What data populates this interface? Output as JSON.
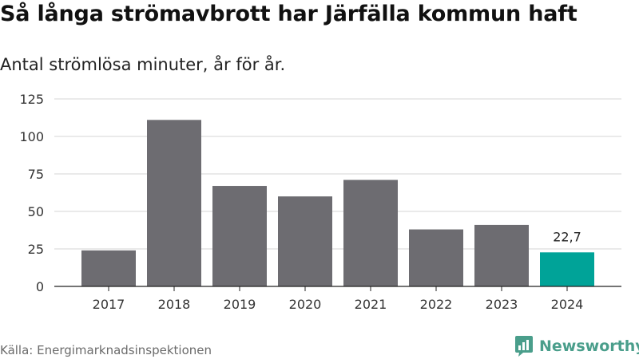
{
  "title": "Så långa strömavbrott har Järfälla kommun haft",
  "subtitle": "Antal strömlösa minuter, år för år.",
  "source": "Källa: Energimarknadsinspektionen",
  "brand": "Newsworthy",
  "colors": {
    "bar": "#6d6c71",
    "highlight": "#00a398",
    "grid": "#dddddd",
    "axis": "#222222",
    "brand": "#4a9e8b"
  },
  "chart_data": {
    "type": "bar",
    "title": "Så långa strömavbrott har Järfälla kommun haft",
    "subtitle": "Antal strömlösa minuter, år för år.",
    "xlabel": "",
    "ylabel": "",
    "categories": [
      "2017",
      "2018",
      "2019",
      "2020",
      "2021",
      "2022",
      "2023",
      "2024"
    ],
    "values": [
      24,
      111,
      67,
      60,
      71,
      38,
      41,
      22.7
    ],
    "highlight_index": 7,
    "data_labels": [
      {
        "index": 7,
        "text": "22,7"
      }
    ],
    "ylim": [
      0,
      125
    ],
    "yticks": [
      0,
      25,
      50,
      75,
      100,
      125
    ],
    "grid": true,
    "legend": "none"
  }
}
